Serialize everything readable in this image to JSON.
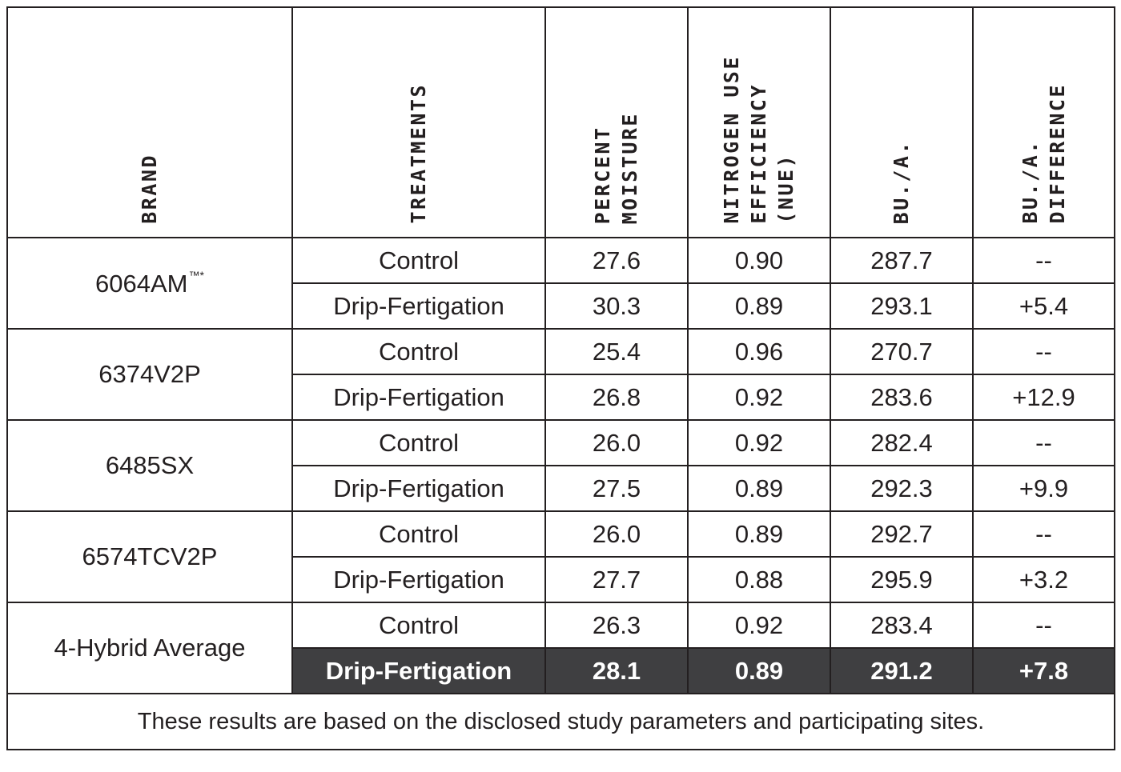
{
  "headers": {
    "brand": [
      "BRAND"
    ],
    "treatments": [
      "TREATMENTS"
    ],
    "moisture": [
      "PERCENT",
      "MOISTURE"
    ],
    "nue": [
      "NITROGEN USE",
      "EFFICIENCY",
      "(NUE)"
    ],
    "bua": [
      "BU./A."
    ],
    "diff": [
      "BU./A.",
      "DIFFERENCE"
    ]
  },
  "groups": [
    {
      "brand": "6064AM",
      "brand_mark": "™*",
      "rows": [
        {
          "treatment": "Control",
          "moisture": "27.6",
          "nue": "0.90",
          "bua": "287.7",
          "diff": "--"
        },
        {
          "treatment": "Drip-Fertigation",
          "moisture": "30.3",
          "nue": "0.89",
          "bua": "293.1",
          "diff": "+5.4"
        }
      ]
    },
    {
      "brand": "6374V2P",
      "brand_mark": "",
      "rows": [
        {
          "treatment": "Control",
          "moisture": "25.4",
          "nue": "0.96",
          "bua": "270.7",
          "diff": "--"
        },
        {
          "treatment": "Drip-Fertigation",
          "moisture": "26.8",
          "nue": "0.92",
          "bua": "283.6",
          "diff": "+12.9"
        }
      ]
    },
    {
      "brand": "6485SX",
      "brand_mark": "",
      "rows": [
        {
          "treatment": "Control",
          "moisture": "26.0",
          "nue": "0.92",
          "bua": "282.4",
          "diff": "--"
        },
        {
          "treatment": "Drip-Fertigation",
          "moisture": "27.5",
          "nue": "0.89",
          "bua": "292.3",
          "diff": "+9.9"
        }
      ]
    },
    {
      "brand": "6574TCV2P",
      "brand_mark": "",
      "rows": [
        {
          "treatment": "Control",
          "moisture": "26.0",
          "nue": "0.89",
          "bua": "292.7",
          "diff": "--"
        },
        {
          "treatment": "Drip-Fertigation",
          "moisture": "27.7",
          "nue": "0.88",
          "bua": "295.9",
          "diff": "+3.2"
        }
      ]
    },
    {
      "brand": "4-Hybrid Average",
      "brand_mark": "",
      "rows": [
        {
          "treatment": "Control",
          "moisture": "26.3",
          "nue": "0.92",
          "bua": "283.4",
          "diff": "--"
        },
        {
          "treatment": "Drip-Fertigation",
          "moisture": "28.1",
          "nue": "0.89",
          "bua": "291.2",
          "diff": "+7.8",
          "highlight": true
        }
      ]
    }
  ],
  "footnote": "These results are based on the disclosed study parameters and participating sites.",
  "colors": {
    "border": "#231f20",
    "highlight_bg": "#3f3f41",
    "highlight_text": "#ffffff"
  }
}
